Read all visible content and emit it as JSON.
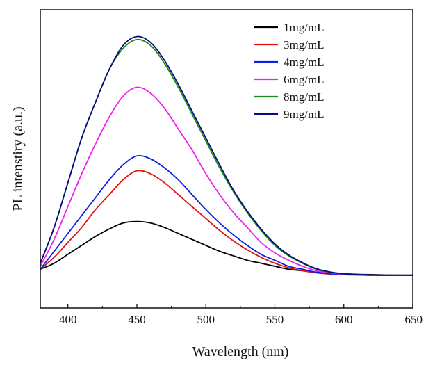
{
  "chart_data": {
    "type": "line",
    "title": "",
    "xlabel": "Wavelength (nm)",
    "ylabel": "PL intenstiry (a.u.)",
    "xlim": [
      380,
      650
    ],
    "ylim": [
      0,
      1.0
    ],
    "xticks": [
      400,
      450,
      500,
      550,
      600,
      650
    ],
    "yticks_shown": false,
    "legend_position": "top-right",
    "x": [
      380,
      390,
      400,
      410,
      420,
      430,
      440,
      450,
      460,
      470,
      480,
      490,
      500,
      510,
      520,
      530,
      540,
      550,
      560,
      570,
      580,
      590,
      600,
      610,
      620,
      630,
      640,
      650
    ],
    "series": [
      {
        "name": "1mg/mL",
        "color": "#000000",
        "values": [
          0.13,
          0.15,
          0.18,
          0.21,
          0.24,
          0.265,
          0.285,
          0.29,
          0.285,
          0.27,
          0.25,
          0.23,
          0.21,
          0.19,
          0.175,
          0.16,
          0.15,
          0.14,
          0.13,
          0.125,
          0.12,
          0.117,
          0.115,
          0.113,
          0.112,
          0.111,
          0.11,
          0.11
        ]
      },
      {
        "name": "3mg/mL",
        "color": "#e0120e",
        "values": [
          0.13,
          0.17,
          0.22,
          0.27,
          0.33,
          0.38,
          0.43,
          0.46,
          0.45,
          0.42,
          0.38,
          0.34,
          0.3,
          0.26,
          0.225,
          0.195,
          0.17,
          0.15,
          0.135,
          0.125,
          0.118,
          0.114,
          0.112,
          0.111,
          0.11,
          0.11,
          0.11,
          0.11
        ]
      },
      {
        "name": "4mg/mL",
        "color": "#0a1ee0",
        "values": [
          0.13,
          0.19,
          0.25,
          0.31,
          0.37,
          0.43,
          0.48,
          0.51,
          0.5,
          0.47,
          0.43,
          0.38,
          0.33,
          0.285,
          0.245,
          0.21,
          0.18,
          0.16,
          0.14,
          0.13,
          0.12,
          0.115,
          0.112,
          0.111,
          0.11,
          0.11,
          0.11,
          0.11
        ]
      },
      {
        "name": "6mg/mL",
        "color": "#f01ef0",
        "values": [
          0.14,
          0.23,
          0.34,
          0.45,
          0.55,
          0.64,
          0.71,
          0.74,
          0.72,
          0.67,
          0.6,
          0.53,
          0.45,
          0.38,
          0.32,
          0.27,
          0.22,
          0.185,
          0.16,
          0.14,
          0.125,
          0.118,
          0.114,
          0.112,
          0.111,
          0.11,
          0.11,
          0.11
        ]
      },
      {
        "name": "8mg/mL",
        "color": "#148c14",
        "values": [
          0.15,
          0.27,
          0.42,
          0.57,
          0.69,
          0.8,
          0.87,
          0.9,
          0.88,
          0.82,
          0.74,
          0.65,
          0.56,
          0.47,
          0.39,
          0.32,
          0.26,
          0.21,
          0.175,
          0.15,
          0.13,
          0.12,
          0.115,
          0.112,
          0.111,
          0.11,
          0.11,
          0.11
        ]
      },
      {
        "name": "9mg/mL",
        "color": "#0c0a80",
        "values": [
          0.15,
          0.27,
          0.42,
          0.57,
          0.69,
          0.8,
          0.88,
          0.91,
          0.89,
          0.83,
          0.75,
          0.66,
          0.57,
          0.48,
          0.395,
          0.325,
          0.265,
          0.215,
          0.178,
          0.152,
          0.132,
          0.121,
          0.115,
          0.112,
          0.111,
          0.11,
          0.11,
          0.11
        ]
      }
    ]
  }
}
